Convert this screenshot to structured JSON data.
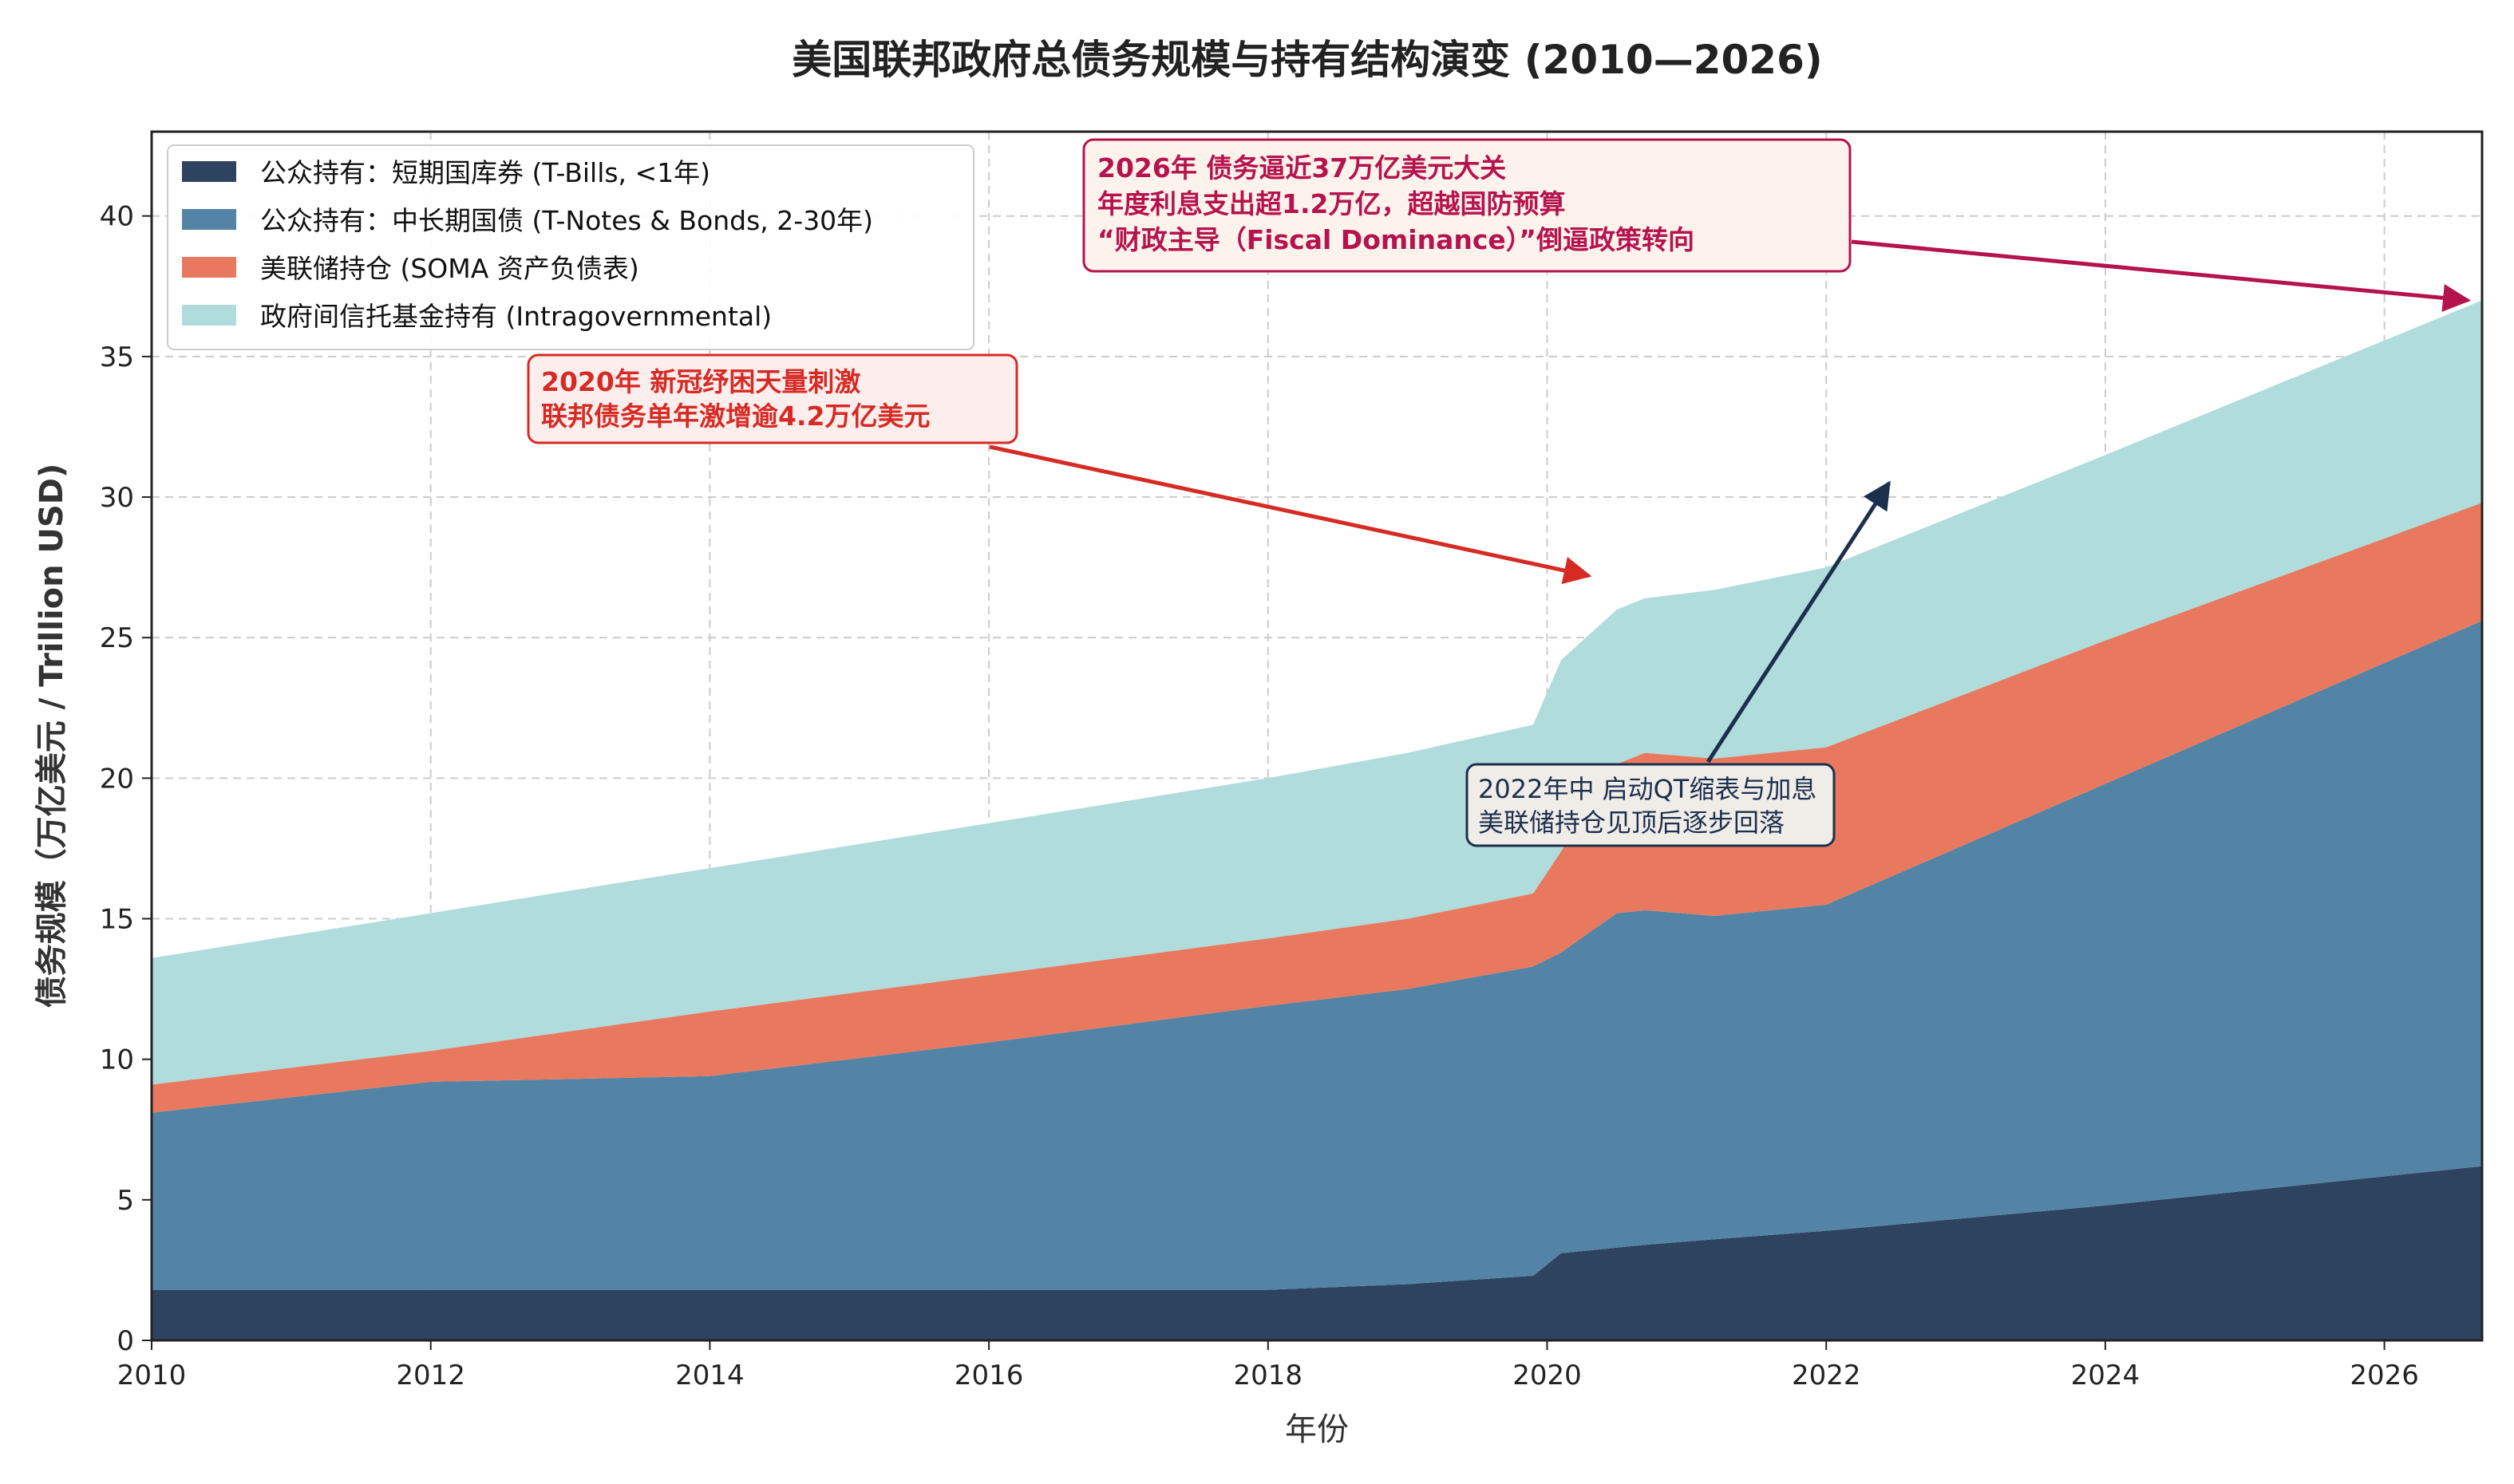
{
  "chart_data": {
    "type": "area",
    "stacked": true,
    "title": "美国联邦政府总债务规模与持有结构演变 (2010—2026)",
    "xlabel": "年份",
    "ylabel": "债务规模（万亿美元 / Trillion USD)",
    "xlim": [
      2010,
      2026.7
    ],
    "ylim": [
      0,
      43
    ],
    "xticks": [
      2010,
      2012,
      2014,
      2016,
      2018,
      2020,
      2022,
      2024,
      2026
    ],
    "yticks": [
      0,
      5,
      10,
      15,
      20,
      25,
      30,
      35,
      40
    ],
    "grid": true,
    "legend_position": "top-left",
    "x": [
      2010,
      2012,
      2014,
      2016,
      2018,
      2019,
      2019.9,
      2020.1,
      2020.5,
      2020.7,
      2021.2,
      2022,
      2024,
      2026.7
    ],
    "series": [
      {
        "name": "公众持有：短期国库券 (T-Bills, <1年)",
        "color": "#2e4360",
        "values": [
          1.8,
          1.8,
          1.8,
          1.8,
          1.8,
          2.0,
          2.3,
          3.1,
          3.3,
          3.4,
          3.6,
          3.9,
          4.8,
          6.2
        ]
      },
      {
        "name": "公众持有：中长期国债 (T-Notes & Bonds, 2-30年)",
        "color": "#5384a5",
        "values": [
          6.3,
          7.4,
          7.6,
          8.8,
          10.1,
          10.5,
          11.0,
          10.7,
          11.9,
          11.9,
          11.5,
          11.6,
          15.0,
          19.4
        ]
      },
      {
        "name": "美联储持仓 (SOMA 资产负债表)",
        "color": "#e8795f",
        "values": [
          1.0,
          1.1,
          2.3,
          2.4,
          2.4,
          2.5,
          2.6,
          3.6,
          5.3,
          5.6,
          5.6,
          5.6,
          5.1,
          4.2
        ]
      },
      {
        "name": "政府间信托基金持有 (Intragovernmental)",
        "color": "#b0dcdc",
        "values": [
          4.5,
          4.9,
          5.1,
          5.4,
          5.7,
          5.9,
          6.0,
          6.8,
          5.5,
          5.5,
          6.0,
          6.4,
          6.6,
          7.2
        ]
      }
    ],
    "annotations": [
      {
        "lines": [
          "2026年 债务逼近37万亿美元大关",
          "年度利息支出超1.2万亿，超越国防预算",
          "“财政主导（Fiscal Dominance）”倒逼政策转向"
        ],
        "color": "#b5134d",
        "target": [
          2026.6,
          37.0
        ]
      },
      {
        "lines": [
          "2020年 新冠纾困天量刺激",
          "联邦债务单年激增逾4.2万亿美元"
        ],
        "color": "#d62b24",
        "target": [
          2020.3,
          27.2
        ]
      },
      {
        "lines": [
          "2022年中 启动QT缩表与加息",
          "美联储持仓见顶后逐步回落"
        ],
        "color": "#1c2f4d",
        "target": [
          2022.45,
          30.5
        ]
      }
    ]
  }
}
